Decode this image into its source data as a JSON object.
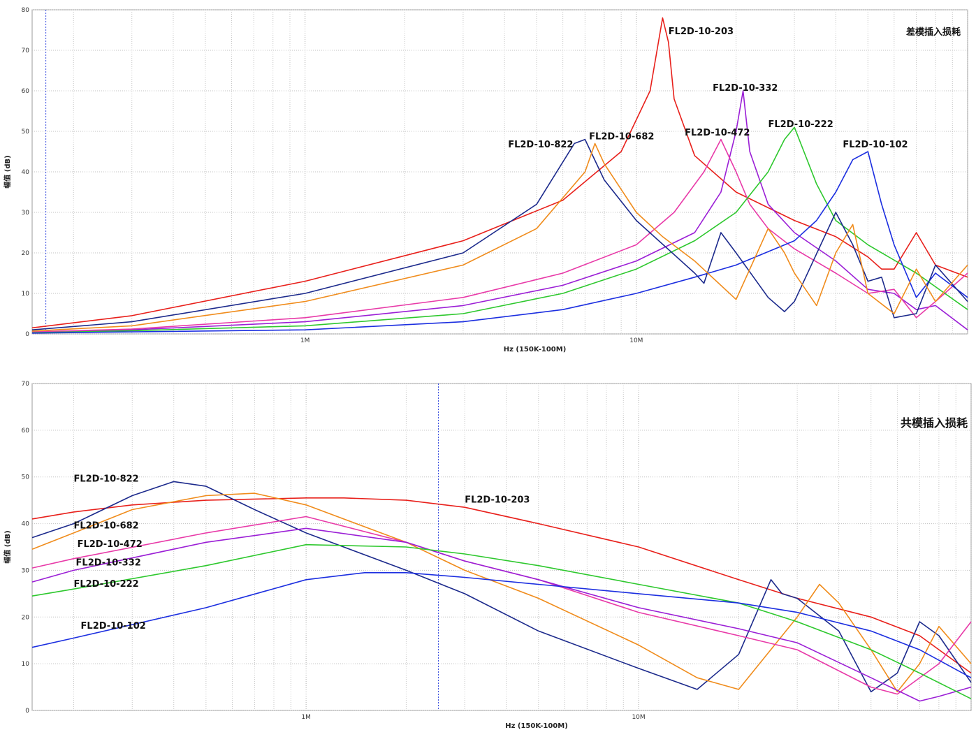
{
  "chart_data": [
    {
      "type": "line",
      "title": "差模插入损耗",
      "xlabel": "Hz  (150K-100M)",
      "ylabel": "幅值 (dB)",
      "xscale": "log",
      "xlim": [
        150000,
        100000000
      ],
      "ylim": [
        0,
        80
      ],
      "yticks": [
        0,
        10,
        20,
        30,
        40,
        50,
        60,
        70,
        80
      ],
      "xtick_labels": [
        {
          "value": 1000000,
          "label": "1M"
        },
        {
          "value": 10000000,
          "label": "10M"
        }
      ],
      "grid": true,
      "marker_line_x": 165000,
      "series": [
        {
          "name": "FL2D-10-203",
          "color": "#e8201b",
          "x": [
            150000,
            300000,
            1000000,
            3000000,
            6000000,
            9000000,
            11000000,
            12000000,
            12500000,
            13000000,
            15000000,
            20000000,
            30000000,
            40000000,
            50000000,
            55000000,
            60000000,
            70000000,
            80000000,
            100000000
          ],
          "y": [
            1.5,
            4.5,
            13,
            23,
            33,
            45,
            60,
            78,
            72,
            58,
            44,
            35,
            28,
            24,
            19,
            16,
            16,
            25,
            17,
            14
          ]
        },
        {
          "name": "FL2D-10-332",
          "color": "#9b1fd6",
          "x": [
            150000,
            300000,
            1000000,
            3000000,
            6000000,
            10000000,
            15000000,
            18000000,
            20000000,
            21000000,
            22000000,
            25000000,
            30000000,
            40000000,
            50000000,
            60000000,
            70000000,
            80000000,
            100000000
          ],
          "y": [
            0.5,
            1,
            3,
            7,
            12,
            18,
            25,
            35,
            50,
            60,
            45,
            32,
            25,
            18,
            11,
            10,
            6,
            7,
            1
          ]
        },
        {
          "name": "FL2D-10-472",
          "color": "#e83aa8",
          "x": [
            150000,
            300000,
            1000000,
            3000000,
            6000000,
            10000000,
            13000000,
            16000000,
            18000000,
            20000000,
            22000000,
            25000000,
            30000000,
            40000000,
            50000000,
            60000000,
            70000000,
            80000000,
            100000000
          ],
          "y": [
            0.5,
            1.2,
            4,
            9,
            15,
            22,
            30,
            40,
            48,
            40,
            32,
            26,
            21,
            15,
            10,
            11,
            4,
            8,
            15
          ]
        },
        {
          "name": "FL2D-10-222",
          "color": "#2ec82e",
          "x": [
            150000,
            300000,
            1000000,
            3000000,
            6000000,
            10000000,
            15000000,
            20000000,
            25000000,
            28000000,
            30000000,
            35000000,
            40000000,
            50000000,
            70000000,
            100000000
          ],
          "y": [
            0.3,
            0.8,
            2,
            5,
            10,
            16,
            23,
            30,
            40,
            48,
            51,
            37,
            28,
            22,
            15,
            6
          ]
        },
        {
          "name": "FL2D-10-102",
          "color": "#1c2fe0",
          "x": [
            150000,
            300000,
            1000000,
            3000000,
            6000000,
            10000000,
            15000000,
            20000000,
            30000000,
            35000000,
            40000000,
            45000000,
            50000000,
            55000000,
            60000000,
            70000000,
            80000000,
            100000000
          ],
          "y": [
            0.2,
            0.5,
            1,
            3,
            6,
            10,
            14,
            17,
            23,
            28,
            35,
            43,
            45,
            32,
            22,
            9,
            15,
            9
          ]
        },
        {
          "name": "FL2D-10-822",
          "color": "#1c2a8c",
          "x": [
            150000,
            300000,
            1000000,
            3000000,
            5000000,
            6500000,
            7000000,
            8000000,
            10000000,
            15000000,
            16000000,
            18000000,
            20000000,
            25000000,
            28000000,
            30000000,
            40000000,
            45000000,
            50000000,
            55000000,
            60000000,
            70000000,
            80000000,
            100000000
          ],
          "y": [
            1,
            3,
            10,
            20,
            32,
            47,
            48,
            38,
            28,
            15,
            12.5,
            25,
            20,
            9,
            5.5,
            8,
            30,
            22,
            13,
            14,
            4,
            5,
            17,
            8
          ]
        },
        {
          "name": "FL2D-10-682",
          "color": "#f08c1c",
          "x": [
            150000,
            300000,
            1000000,
            3000000,
            5000000,
            7000000,
            7500000,
            8000000,
            10000000,
            12000000,
            15000000,
            20000000,
            25000000,
            28000000,
            30000000,
            35000000,
            40000000,
            45000000,
            50000000,
            60000000,
            70000000,
            80000000,
            100000000
          ],
          "y": [
            0.7,
            2,
            8,
            17,
            26,
            40,
            47,
            42,
            30,
            24,
            18,
            8.5,
            26,
            20,
            15,
            7,
            20,
            27,
            10,
            5,
            16,
            8,
            17
          ]
        }
      ],
      "labels": [
        {
          "text": "FL2D-10-203",
          "x": 12500000,
          "y": 74
        },
        {
          "text": "FL2D-10-332",
          "x": 17000000,
          "y": 60
        },
        {
          "text": "FL2D-10-472",
          "x": 14000000,
          "y": 49
        },
        {
          "text": "FL2D-10-222",
          "x": 25000000,
          "y": 51
        },
        {
          "text": "FL2D-10-102",
          "x": 42000000,
          "y": 46
        },
        {
          "text": "FL2D-10-822",
          "x": 4100000,
          "y": 46
        },
        {
          "text": "FL2D-10-682",
          "x": 7200000,
          "y": 48
        }
      ]
    },
    {
      "type": "line",
      "title": "共模插入损耗",
      "xlabel": "Hz  (150K-100M)",
      "ylabel": "幅值 (dB)",
      "xscale": "log",
      "xlim": [
        150000,
        100000000
      ],
      "ylim": [
        0,
        70
      ],
      "yticks": [
        0,
        10,
        20,
        30,
        40,
        50,
        60,
        70
      ],
      "xtick_labels": [
        {
          "value": 1000000,
          "label": "1M"
        },
        {
          "value": 10000000,
          "label": "10M"
        }
      ],
      "grid": true,
      "marker_line_x": 2500000,
      "series": [
        {
          "name": "FL2D-10-203",
          "color": "#e8201b",
          "x": [
            150000,
            200000,
            300000,
            500000,
            1000000,
            1300000,
            2000000,
            3000000,
            5000000,
            10000000,
            20000000,
            30000000,
            50000000,
            70000000,
            100000000
          ],
          "y": [
            41,
            42.5,
            44,
            45,
            45.5,
            45.5,
            45,
            43.5,
            40,
            35,
            28,
            24,
            20,
            16,
            8
          ]
        },
        {
          "name": "FL2D-10-822",
          "color": "#1c2a8c",
          "x": [
            150000,
            200000,
            300000,
            400000,
            500000,
            700000,
            1000000,
            2000000,
            3000000,
            5000000,
            10000000,
            15000000,
            20000000,
            25000000,
            27000000,
            30000000,
            40000000,
            50000000,
            60000000,
            70000000,
            80000000,
            100000000
          ],
          "y": [
            37,
            40,
            46,
            49,
            48,
            43,
            38,
            30,
            25,
            17,
            9,
            4.5,
            12,
            28,
            25,
            24,
            17,
            4,
            8,
            19,
            16,
            6
          ]
        },
        {
          "name": "FL2D-10-682",
          "color": "#f08c1c",
          "x": [
            150000,
            200000,
            300000,
            500000,
            700000,
            1000000,
            2000000,
            3000000,
            5000000,
            10000000,
            15000000,
            20000000,
            30000000,
            35000000,
            40000000,
            50000000,
            60000000,
            70000000,
            80000000,
            100000000
          ],
          "y": [
            34.5,
            38,
            43,
            46,
            46.5,
            44,
            36,
            30,
            24,
            14,
            7,
            4.5,
            20,
            27,
            23,
            13,
            4,
            10,
            18,
            10
          ]
        },
        {
          "name": "FL2D-10-472",
          "color": "#e83aa8",
          "x": [
            150000,
            200000,
            500000,
            1000000,
            2000000,
            3000000,
            5000000,
            10000000,
            20000000,
            30000000,
            50000000,
            60000000,
            80000000,
            100000000
          ],
          "y": [
            30.5,
            32.5,
            38,
            41.5,
            36,
            32,
            28,
            21,
            16,
            13,
            5,
            3.5,
            10,
            19
          ]
        },
        {
          "name": "FL2D-10-332",
          "color": "#9b1fd6",
          "x": [
            150000,
            200000,
            500000,
            1000000,
            2000000,
            3000000,
            5000000,
            10000000,
            20000000,
            30000000,
            50000000,
            70000000,
            80000000,
            100000000
          ],
          "y": [
            27.5,
            30,
            36,
            39,
            36,
            32,
            28,
            22,
            17.5,
            14.5,
            7,
            2,
            3,
            5
          ]
        },
        {
          "name": "FL2D-10-222",
          "color": "#2ec82e",
          "x": [
            150000,
            200000,
            500000,
            1000000,
            2000000,
            3000000,
            5000000,
            10000000,
            20000000,
            30000000,
            50000000,
            70000000,
            100000000
          ],
          "y": [
            24.5,
            26,
            31,
            35.5,
            35,
            33.5,
            31,
            27,
            23,
            19,
            13,
            8,
            2.5
          ]
        },
        {
          "name": "FL2D-10-102",
          "color": "#1c2fe0",
          "x": [
            150000,
            200000,
            500000,
            1000000,
            1500000,
            2000000,
            3000000,
            5000000,
            10000000,
            20000000,
            30000000,
            50000000,
            70000000,
            100000000
          ],
          "y": [
            13.5,
            15.5,
            22,
            28,
            29.5,
            29.5,
            28.5,
            27,
            25,
            23,
            21,
            17,
            13,
            7
          ]
        }
      ],
      "labels": [
        {
          "text": "FL2D-10-822",
          "x": 200000,
          "y": 49
        },
        {
          "text": "FL2D-10-203",
          "x": 3000000,
          "y": 44.5
        },
        {
          "text": "FL2D-10-682",
          "x": 200000,
          "y": 39
        },
        {
          "text": "FL2D-10-472",
          "x": 205000,
          "y": 35
        },
        {
          "text": "FL2D-10-332",
          "x": 203000,
          "y": 31
        },
        {
          "text": "FL2D-10-222",
          "x": 200000,
          "y": 26.5
        },
        {
          "text": "FL2D-10-102",
          "x": 210000,
          "y": 17.5
        }
      ]
    }
  ]
}
